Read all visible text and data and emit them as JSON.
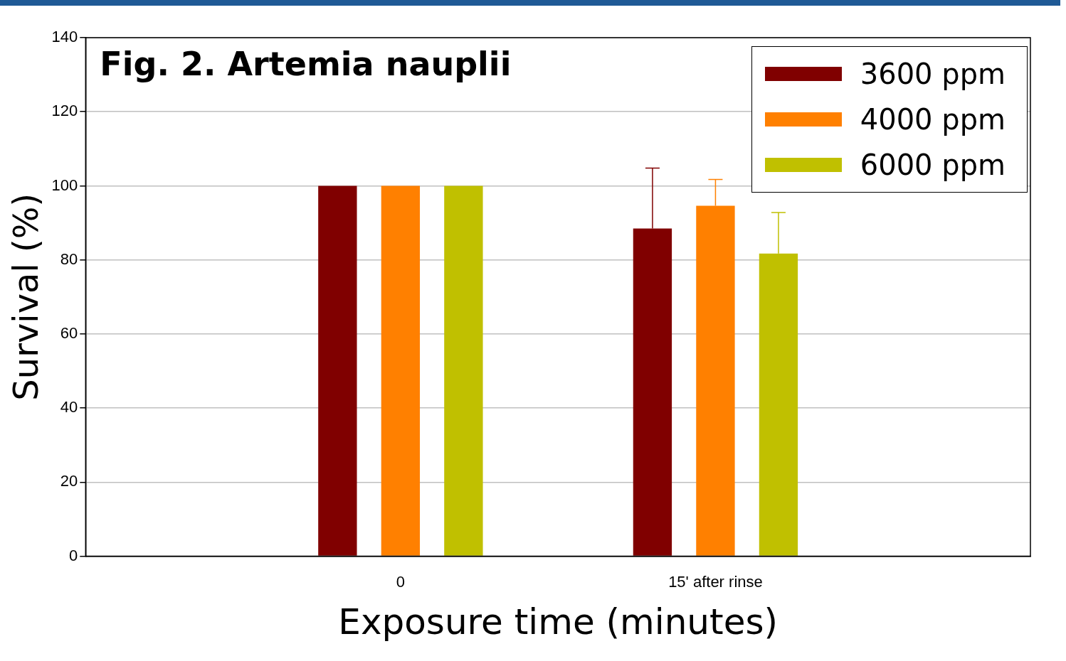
{
  "chart_data": {
    "type": "bar",
    "title": "Fig. 2. Artemia nauplii",
    "xlabel": "Exposure time (minutes)",
    "ylabel": "Survival (%)",
    "categories": [
      "0",
      "15' after rinse"
    ],
    "series": [
      {
        "name": "3600 ppm",
        "color": "#800000",
        "values": [
          100,
          88.5
        ],
        "errors": [
          null,
          [
            88.5,
            104.8
          ]
        ]
      },
      {
        "name": "4000 ppm",
        "color": "#ff8000",
        "values": [
          100,
          94.6
        ],
        "errors": [
          null,
          [
            94.6,
            101.7
          ]
        ]
      },
      {
        "name": "6000 ppm",
        "color": "#c0c000",
        "values": [
          100,
          81.7
        ],
        "errors": [
          null,
          [
            81.7,
            92.8
          ]
        ]
      }
    ],
    "ylim": [
      0,
      140
    ],
    "yticks": [
      0,
      20,
      40,
      60,
      80,
      100,
      120,
      140
    ],
    "grid": "y",
    "legend": "top right"
  }
}
